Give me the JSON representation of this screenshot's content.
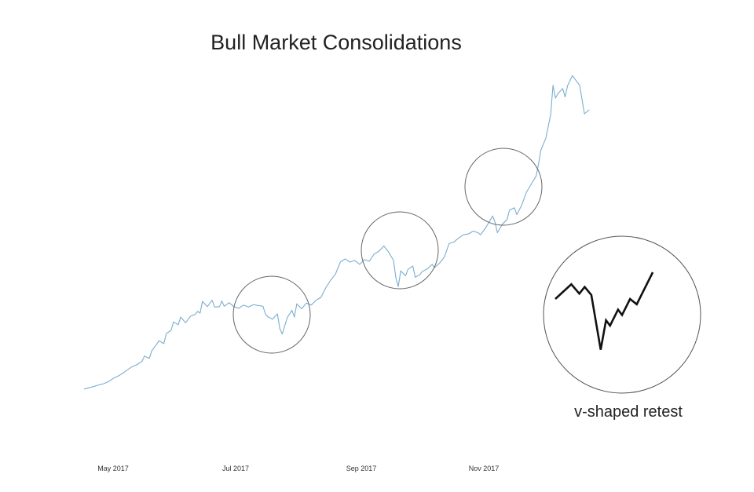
{
  "chart_data": {
    "type": "line",
    "title": "Bull Market Consolidations",
    "xlabel": "",
    "ylabel": "",
    "x_ticks": [
      "May 2017",
      "Jul 2017",
      "Sep 2017",
      "Nov 2017"
    ],
    "grid": false,
    "series": [
      {
        "color": "#7aaed0",
        "points": [
          [
            0,
            2.0
          ],
          [
            2,
            2.3
          ],
          [
            4,
            2.6
          ],
          [
            6,
            3.0
          ],
          [
            8,
            3.3
          ],
          [
            10,
            3.8
          ],
          [
            12,
            4.6
          ],
          [
            14,
            5.2
          ],
          [
            16,
            5.9
          ],
          [
            18,
            6.8
          ],
          [
            20,
            7.6
          ],
          [
            22,
            8.1
          ],
          [
            24,
            8.9
          ],
          [
            25,
            10.2
          ],
          [
            27,
            9.6
          ],
          [
            28,
            11.5
          ],
          [
            30,
            13.1
          ],
          [
            31,
            14.0
          ],
          [
            33,
            13.3
          ],
          [
            34,
            15.8
          ],
          [
            36,
            16.6
          ],
          [
            37,
            18.7
          ],
          [
            39,
            18.0
          ],
          [
            40,
            19.9
          ],
          [
            42,
            18.5
          ],
          [
            44,
            20.1
          ],
          [
            46,
            20.6
          ],
          [
            47,
            21.3
          ],
          [
            48,
            20.9
          ],
          [
            49,
            23.8
          ],
          [
            51,
            22.5
          ],
          [
            53,
            24.1
          ],
          [
            54,
            22.4
          ],
          [
            56,
            22.5
          ],
          [
            57,
            23.9
          ],
          [
            58,
            22.6
          ],
          [
            60,
            23.5
          ],
          [
            62,
            22.5
          ],
          [
            64,
            22.1
          ],
          [
            66,
            22.9
          ],
          [
            68,
            22.4
          ],
          [
            70,
            23.0
          ],
          [
            72,
            22.8
          ],
          [
            74,
            22.6
          ],
          [
            75,
            20.7
          ],
          [
            76,
            20.0
          ],
          [
            78,
            19.4
          ],
          [
            80,
            20.7
          ],
          [
            81,
            17.0
          ],
          [
            82,
            15.7
          ],
          [
            84,
            19.7
          ],
          [
            86,
            21.6
          ],
          [
            87,
            19.9
          ],
          [
            88,
            23.2
          ],
          [
            90,
            22.0
          ],
          [
            92,
            23.4
          ],
          [
            94,
            22.9
          ],
          [
            96,
            24.1
          ],
          [
            98,
            24.8
          ],
          [
            100,
            27.2
          ],
          [
            102,
            29.1
          ],
          [
            104,
            30.6
          ],
          [
            106,
            33.6
          ],
          [
            108,
            34.4
          ],
          [
            110,
            33.6
          ],
          [
            112,
            34.0
          ],
          [
            114,
            33.0
          ],
          [
            116,
            34.2
          ],
          [
            118,
            33.8
          ],
          [
            120,
            35.6
          ],
          [
            122,
            36.3
          ],
          [
            124,
            37.6
          ],
          [
            126,
            36.1
          ],
          [
            128,
            34.0
          ],
          [
            129,
            29.6
          ],
          [
            130,
            27.5
          ],
          [
            131,
            31.4
          ],
          [
            133,
            30.2
          ],
          [
            134,
            31.8
          ],
          [
            136,
            32.6
          ],
          [
            137,
            29.8
          ],
          [
            139,
            30.5
          ],
          [
            140,
            31.3
          ],
          [
            142,
            31.9
          ],
          [
            144,
            33.0
          ],
          [
            145,
            32.2
          ],
          [
            147,
            33.3
          ],
          [
            149,
            34.8
          ],
          [
            151,
            38.2
          ],
          [
            153,
            38.6
          ],
          [
            155,
            39.6
          ],
          [
            157,
            40.4
          ],
          [
            159,
            40.6
          ],
          [
            161,
            41.3
          ],
          [
            163,
            40.9
          ],
          [
            164,
            40.4
          ],
          [
            166,
            42.0
          ],
          [
            168,
            44.0
          ],
          [
            169,
            45.1
          ],
          [
            170,
            43.5
          ],
          [
            171,
            40.9
          ],
          [
            173,
            43.0
          ],
          [
            175,
            44.2
          ],
          [
            176,
            46.5
          ],
          [
            178,
            47.1
          ],
          [
            179,
            45.4
          ],
          [
            181,
            47.7
          ],
          [
            183,
            51.0
          ],
          [
            185,
            53.0
          ],
          [
            187,
            55.0
          ],
          [
            188,
            58.0
          ],
          [
            189,
            61.5
          ],
          [
            191,
            64.4
          ],
          [
            193,
            70.3
          ],
          [
            194,
            77.6
          ],
          [
            195,
            74.4
          ],
          [
            196,
            75.5
          ],
          [
            198,
            76.8
          ],
          [
            199,
            74.7
          ],
          [
            200,
            77.5
          ],
          [
            202,
            80.0
          ],
          [
            204,
            78.4
          ],
          [
            205,
            77.6
          ],
          [
            206,
            74.0
          ],
          [
            207,
            70.5
          ],
          [
            209,
            71.5
          ]
        ]
      }
    ],
    "inset": {
      "caption": "v-shaped retest",
      "color": "#111111",
      "points": [
        [
          0,
          20
        ],
        [
          12,
          31
        ],
        [
          18,
          24
        ],
        [
          22,
          29
        ],
        [
          27,
          23
        ],
        [
          34,
          -18
        ],
        [
          38,
          4
        ],
        [
          41,
          0
        ],
        [
          47,
          12
        ],
        [
          50,
          8
        ],
        [
          56,
          20
        ],
        [
          61,
          16
        ],
        [
          73,
          40
        ]
      ]
    }
  }
}
